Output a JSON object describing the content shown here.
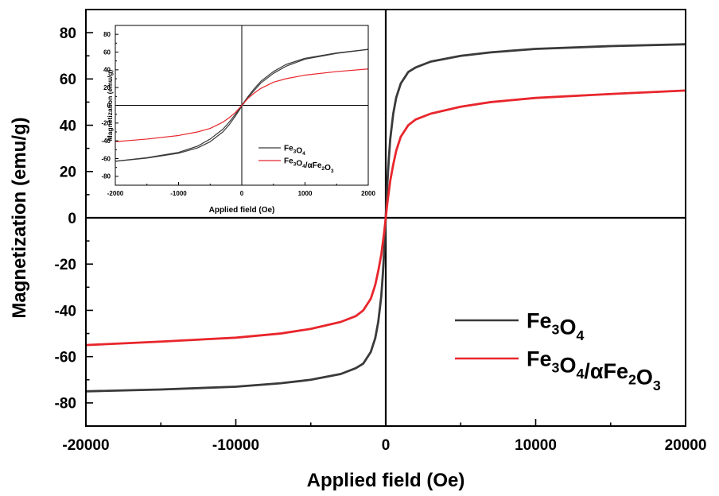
{
  "chart_data": [
    {
      "id": "main",
      "type": "line",
      "xlabel": "Applied field (Oe)",
      "ylabel": "Magnetization (emu/g)",
      "xlim": [
        -20000,
        20000
      ],
      "ylim": [
        -90,
        90
      ],
      "xticks": [
        -20000,
        -10000,
        0,
        10000,
        20000
      ],
      "yticks": [
        -80,
        -60,
        -40,
        -20,
        0,
        20,
        40,
        60,
        80
      ],
      "zero_lines": true,
      "legend_position": "bottom-right",
      "series": [
        {
          "name": "Fe3O4",
          "color": "#3a3a3a",
          "x": [
            -20000,
            -15000,
            -10000,
            -7000,
            -5000,
            -3000,
            -2000,
            -1500,
            -1000,
            -700,
            -500,
            -300,
            -200,
            -100,
            0,
            100,
            200,
            300,
            500,
            700,
            1000,
            1500,
            2000,
            3000,
            5000,
            7000,
            10000,
            15000,
            20000
          ],
          "y": [
            -75,
            -74.2,
            -73,
            -71.5,
            -70,
            -67.5,
            -65,
            -63,
            -58,
            -52,
            -45,
            -34,
            -25,
            -14,
            0,
            14,
            25,
            34,
            45,
            52,
            58,
            63,
            65,
            67.5,
            70,
            71.5,
            73,
            74.2,
            75
          ]
        },
        {
          "name": "Fe3O4/αFe2O3",
          "color": "#e8262c",
          "x": [
            -20000,
            -15000,
            -10000,
            -7000,
            -5000,
            -3000,
            -2000,
            -1500,
            -1000,
            -700,
            -500,
            -300,
            -200,
            -100,
            0,
            100,
            200,
            300,
            500,
            700,
            1000,
            1500,
            2000,
            3000,
            5000,
            7000,
            10000,
            15000,
            20000
          ],
          "y": [
            -55,
            -53.5,
            -51.8,
            -50,
            -48,
            -45,
            -42.5,
            -40,
            -35,
            -29,
            -23,
            -16,
            -11,
            -6,
            0,
            6,
            11,
            16,
            23,
            29,
            35,
            40,
            42.5,
            45,
            48,
            50,
            51.8,
            53.5,
            55
          ]
        }
      ],
      "legend": [
        {
          "base": "Fe",
          "sub1": "3",
          "mid": "O",
          "sub2": "4",
          "tail": "",
          "sub3": "",
          "tail2": "",
          "sub4": ""
        },
        {
          "base": "Fe",
          "sub1": "3",
          "mid": "O",
          "sub2": "4",
          "tail": "/αFe",
          "sub3": "2",
          "tail2": "O",
          "sub4": "3"
        }
      ]
    },
    {
      "id": "inset",
      "type": "line",
      "xlabel": "Applied field (Oe)",
      "ylabel": "Magnetization (emu/g)",
      "xlim": [
        -2000,
        2000
      ],
      "ylim": [
        -90,
        90
      ],
      "xticks": [
        -2000,
        -1000,
        0,
        1000,
        2000
      ],
      "yticks": [
        -80,
        -60,
        -40,
        -20,
        0,
        20,
        40,
        60,
        80
      ],
      "zero_lines": true,
      "legend_position": "bottom-right",
      "series": [
        {
          "name": "Fe3O4",
          "color": "#3a3a3a",
          "x": [
            -2000,
            -1500,
            -1000,
            -700,
            -500,
            -300,
            -200,
            -100,
            0,
            100,
            200,
            300,
            500,
            700,
            1000,
            1500,
            2000
          ],
          "y": [
            -63,
            -59,
            -53,
            -46,
            -38,
            -27,
            -19,
            -10,
            0,
            10,
            19,
            27,
            38,
            46,
            53,
            59,
            63
          ],
          "y_alt": [
            -63,
            -59.5,
            -54,
            -48,
            -41,
            -30,
            -22,
            -12,
            -1,
            9,
            17,
            25,
            36,
            44,
            52,
            58.5,
            63
          ]
        },
        {
          "name": "Fe3O4/αFe2O3",
          "color": "#e8262c",
          "x": [
            -2000,
            -1500,
            -1000,
            -700,
            -500,
            -300,
            -200,
            -100,
            0,
            100,
            200,
            300,
            500,
            700,
            1000,
            1500,
            2000
          ],
          "y": [
            -41,
            -38,
            -34,
            -30,
            -26,
            -19,
            -14,
            -8,
            0,
            8,
            14,
            19,
            26,
            30,
            34,
            38,
            41
          ]
        }
      ],
      "legend": [
        {
          "base": "Fe",
          "sub1": "3",
          "mid": "O",
          "sub2": "4",
          "tail": "",
          "sub3": "",
          "tail2": "",
          "sub4": ""
        },
        {
          "base": "Fe",
          "sub1": "3",
          "mid": "O",
          "sub2": "4",
          "tail": "/αFe",
          "sub3": "2",
          "tail2": "O",
          "sub4": "3"
        }
      ]
    }
  ]
}
